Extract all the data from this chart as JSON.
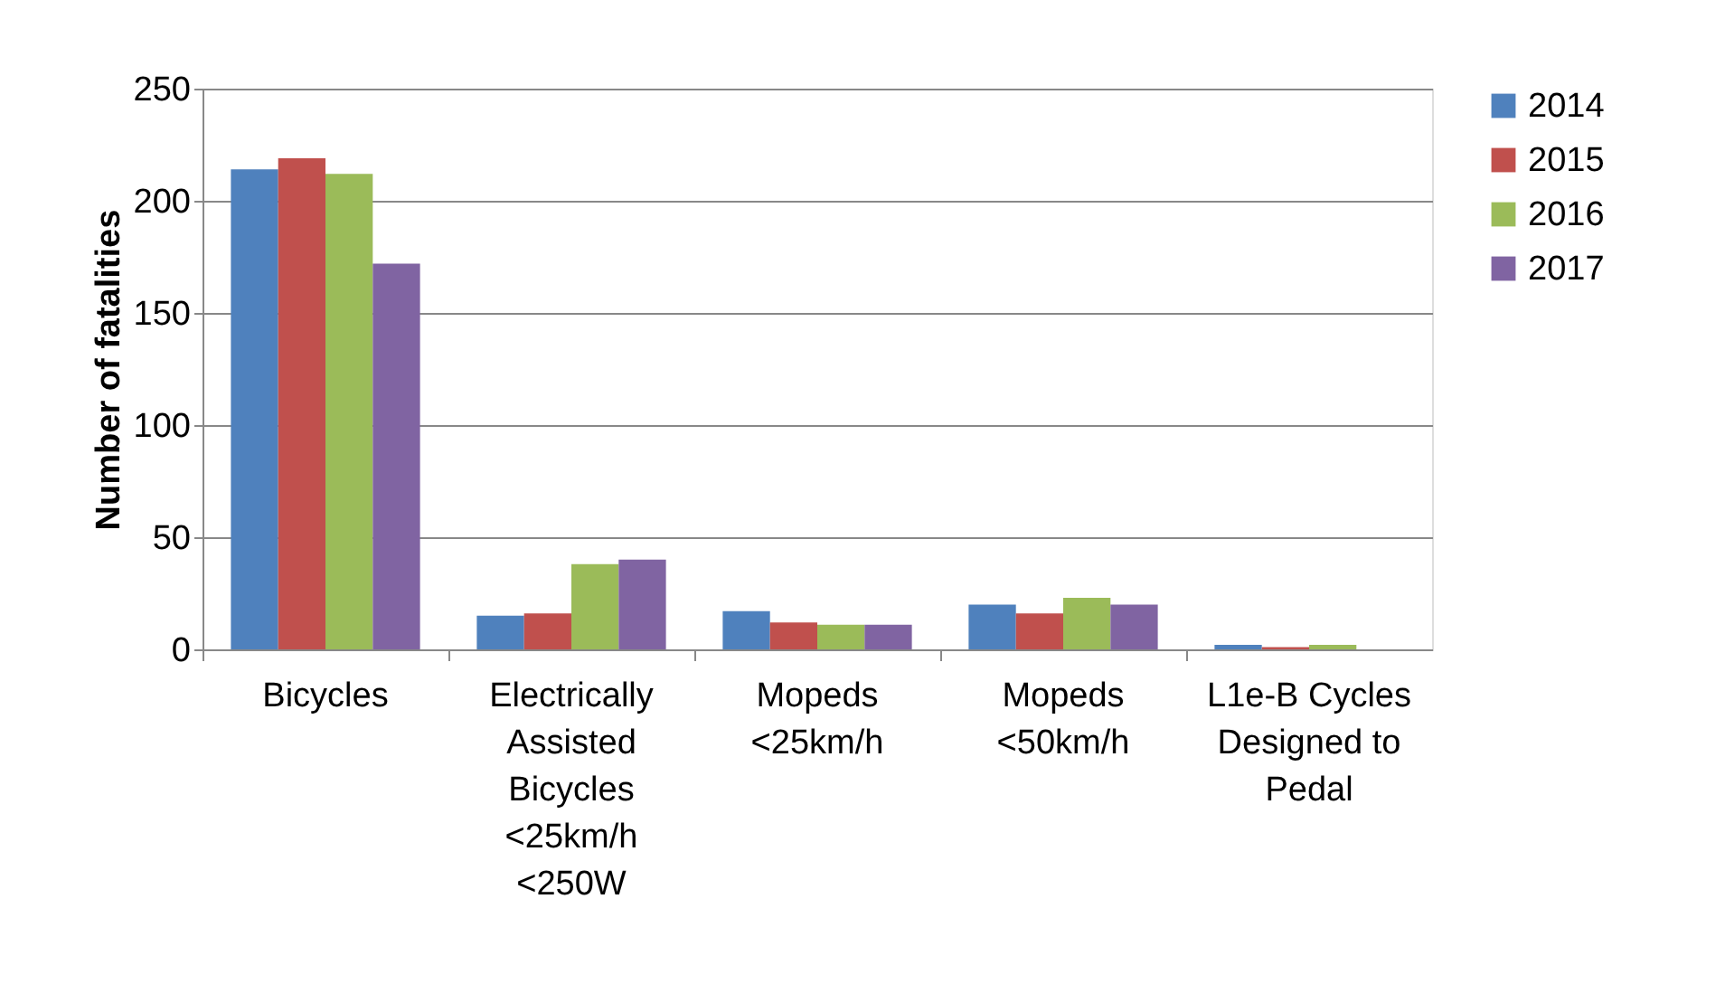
{
  "chart_data": {
    "type": "bar",
    "ylabel": "Number of fatalities",
    "categories": [
      "Bicycles",
      "Electrically Assisted Bicycles <25km/h <250W",
      "Mopeds <25km/h",
      "Mopeds <50km/h",
      "L1e-B Cycles Designed to Pedal"
    ],
    "series": [
      {
        "name": "2014",
        "color": "#4f81bd",
        "values": [
          214,
          15,
          17,
          20,
          2
        ]
      },
      {
        "name": "2015",
        "color": "#c0504d",
        "values": [
          219,
          16,
          12,
          16,
          1
        ]
      },
      {
        "name": "2016",
        "color": "#9bbb59",
        "values": [
          212,
          38,
          11,
          23,
          2
        ]
      },
      {
        "name": "2017",
        "color": "#8064a2",
        "values": [
          172,
          40,
          11,
          20,
          0
        ]
      }
    ],
    "ylim": [
      0,
      250
    ],
    "yticks": [
      0,
      50,
      100,
      150,
      200,
      250
    ],
    "grid": "y",
    "legend": "right"
  }
}
